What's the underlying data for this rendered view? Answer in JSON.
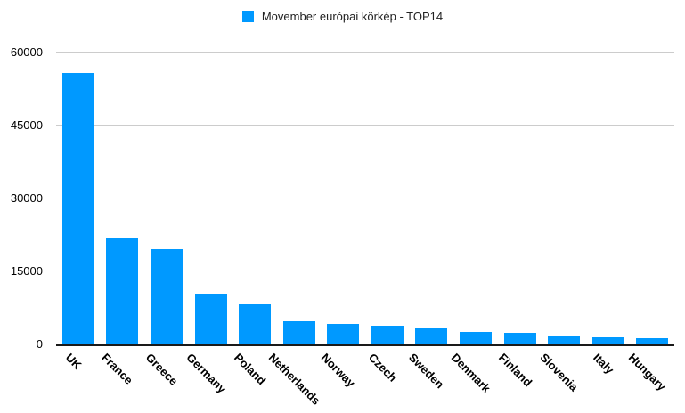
{
  "chart_data": {
    "type": "bar",
    "title": "Movember európai körkép - TOP14",
    "legend": {
      "position": "top",
      "label": "Movember európai körkép - TOP14"
    },
    "categories": [
      "UK",
      "France",
      "Greece",
      "Germany",
      "Poland",
      "Netherlands",
      "Norway",
      "Czech",
      "Sweden",
      "Denmark",
      "Finland",
      "Slovenia",
      "Italy",
      "Hungary"
    ],
    "values": [
      55800,
      22000,
      19600,
      10500,
      8500,
      4800,
      4300,
      3900,
      3400,
      2500,
      2400,
      1600,
      1400,
      1300
    ],
    "xlabel": "",
    "ylabel": "",
    "ylim": [
      0,
      60000
    ],
    "yticks": [
      0,
      15000,
      30000,
      45000,
      60000
    ],
    "grid": true,
    "colors": {
      "bar": "#0099ff",
      "gridline": "#cccccc",
      "axis_line": "#1a1a1a",
      "label_text": "#000000",
      "background": "#ffffff"
    }
  }
}
